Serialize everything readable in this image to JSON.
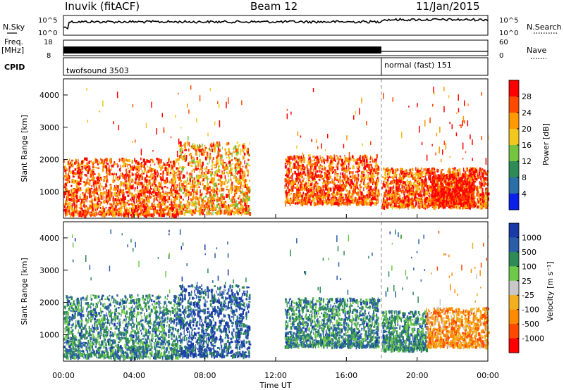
{
  "header": {
    "station": "Inuvik (fitACF)",
    "beam": "Beam 12",
    "date": "11/Jan/2015"
  },
  "panels": {
    "nsky_label": "N.Sky",
    "nsky_ticks": [
      "10^5",
      "10^0"
    ],
    "nsearch_label": "N.Search",
    "nsearch_ticks": [
      "10^5",
      "10^0"
    ],
    "freq_label": "Freq.",
    "freq_unit": "[MHz]",
    "freq_ticks": [
      "18",
      "8"
    ],
    "nave_label": "Nave",
    "nave_ticks": [
      "60",
      "0"
    ],
    "cpid_label": "CPID",
    "cpid_segments": [
      {
        "name": "twofsound 3503",
        "start_hour": 0,
        "end_hour": 18
      },
      {
        "name": "normal (fast) 151",
        "start_hour": 18,
        "end_hour": 24
      }
    ]
  },
  "chart_data": [
    {
      "type": "heatmap",
      "name": "power",
      "ylabel": "Slant Range [km]",
      "colorbar_label": "Power [dB]",
      "colorbar_ticks": [
        "28",
        "24",
        "20",
        "16",
        "12",
        "8",
        "4"
      ],
      "colorbar_colors": [
        "#ff0000",
        "#ff4a00",
        "#ff9a00",
        "#f2c81e",
        "#74c441",
        "#2e8b57",
        "#2b6fa8",
        "#0a1fe8"
      ],
      "ylim": [
        180,
        4500
      ],
      "yticks": [
        1000,
        2000,
        3000,
        4000
      ],
      "xlim": [
        0,
        24
      ],
      "scatter_bands": [
        {
          "x_start": 0.0,
          "x_end": 6.5,
          "range_low": 250,
          "range_high": 2000,
          "dominant_db": 24
        },
        {
          "x_start": 6.5,
          "x_end": 10.5,
          "range_low": 300,
          "range_high": 2500,
          "dominant_db": 20
        },
        {
          "x_start": 12.5,
          "x_end": 17.8,
          "range_low": 600,
          "range_high": 2100,
          "dominant_db": 26
        },
        {
          "x_start": 18.0,
          "x_end": 24.0,
          "range_low": 500,
          "range_high": 1700,
          "dominant_db": 24
        },
        {
          "x_start": 20.8,
          "x_end": 23.2,
          "range_low": 600,
          "range_high": 1500,
          "dominant_db": 30
        }
      ]
    },
    {
      "type": "heatmap",
      "name": "velocity",
      "ylabel": "Slant Range [km]",
      "xlabel": "Time UT",
      "colorbar_label": "Velocity [m s⁻¹]",
      "colorbar_ticks": [
        "1000",
        "500",
        "100",
        "25",
        "-25",
        "-100",
        "-500",
        "-1000"
      ],
      "colorbar_colors": [
        "#1a3aa8",
        "#2a5fa8",
        "#2e8b57",
        "#6ec94a",
        "#c8c8c8",
        "#f0b020",
        "#ff8a00",
        "#ff4a00",
        "#ff0000"
      ],
      "ylim": [
        180,
        4500
      ],
      "yticks": [
        1000,
        2000,
        3000,
        4000
      ],
      "xlim": [
        0,
        24
      ],
      "xticks": [
        "00:00",
        "04:00",
        "08:00",
        "12:00",
        "16:00",
        "20:00",
        "00:00"
      ],
      "scatter_bands": [
        {
          "x_start": 0.0,
          "x_end": 6.5,
          "range_low": 250,
          "range_high": 2200,
          "dominant_ms": 100
        },
        {
          "x_start": 6.5,
          "x_end": 10.5,
          "range_low": 300,
          "range_high": 2500,
          "dominant_ms": 500
        },
        {
          "x_start": 12.5,
          "x_end": 17.8,
          "range_low": 600,
          "range_high": 2100,
          "dominant_ms": 100
        },
        {
          "x_start": 18.0,
          "x_end": 20.5,
          "range_low": 500,
          "range_high": 1700,
          "dominant_ms": 100
        },
        {
          "x_start": 20.5,
          "x_end": 24.0,
          "range_low": 600,
          "range_high": 1800,
          "dominant_ms": -500
        }
      ]
    }
  ]
}
